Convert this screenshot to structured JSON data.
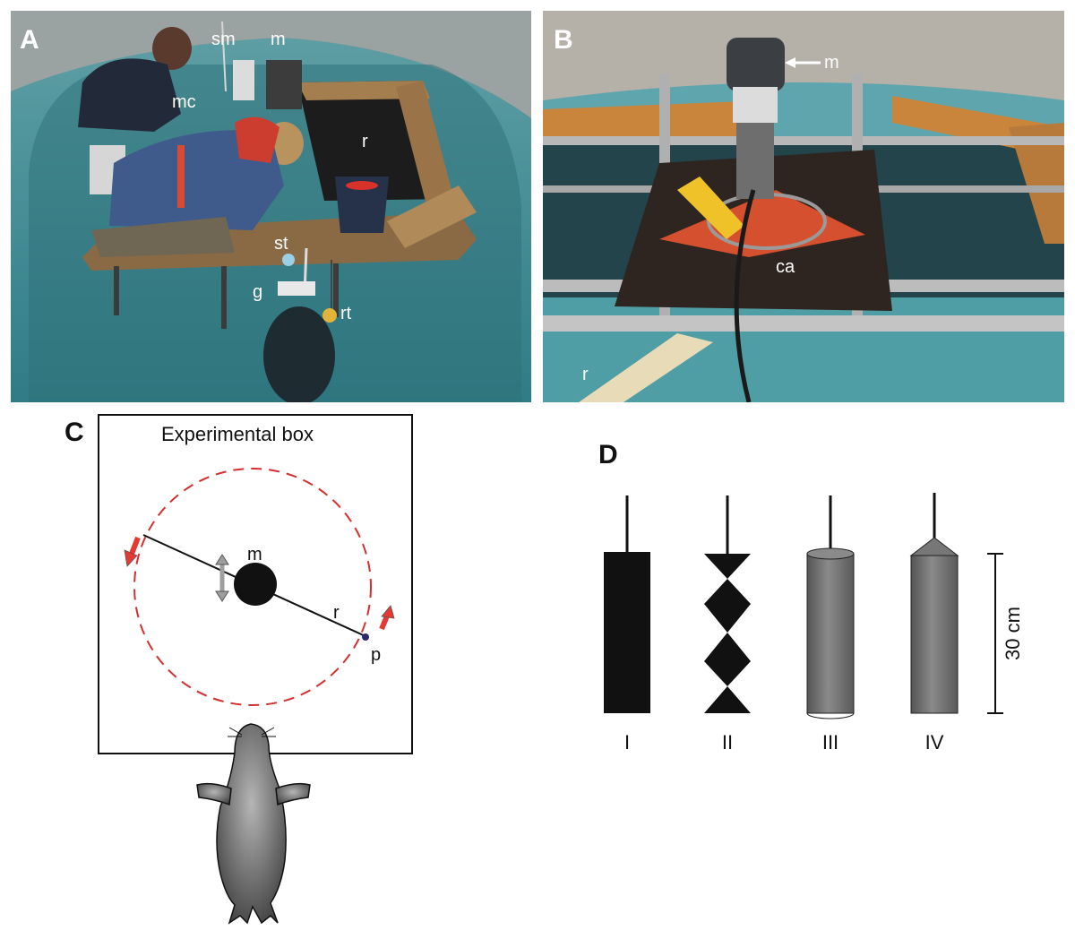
{
  "panel_a": {
    "letter": "A",
    "labels": {
      "sm": "sm",
      "m": "m",
      "mc": "mc",
      "r": "r",
      "st": "st",
      "g": "g",
      "rt": "rt"
    }
  },
  "panel_b": {
    "letter": "B",
    "labels": {
      "m": "m",
      "ca": "ca",
      "r": "r"
    }
  },
  "panel_c": {
    "letter": "C",
    "title": "Experimental box",
    "labels": {
      "m": "m",
      "r": "r",
      "p": "p"
    },
    "colors": {
      "circle": "#d32f2f",
      "arrow": "#e53935",
      "double_arrow": "#9e9e9e"
    }
  },
  "panel_d": {
    "letter": "D",
    "objects": [
      "I",
      "II",
      "III",
      "IV"
    ],
    "scale_label": "30 cm"
  }
}
